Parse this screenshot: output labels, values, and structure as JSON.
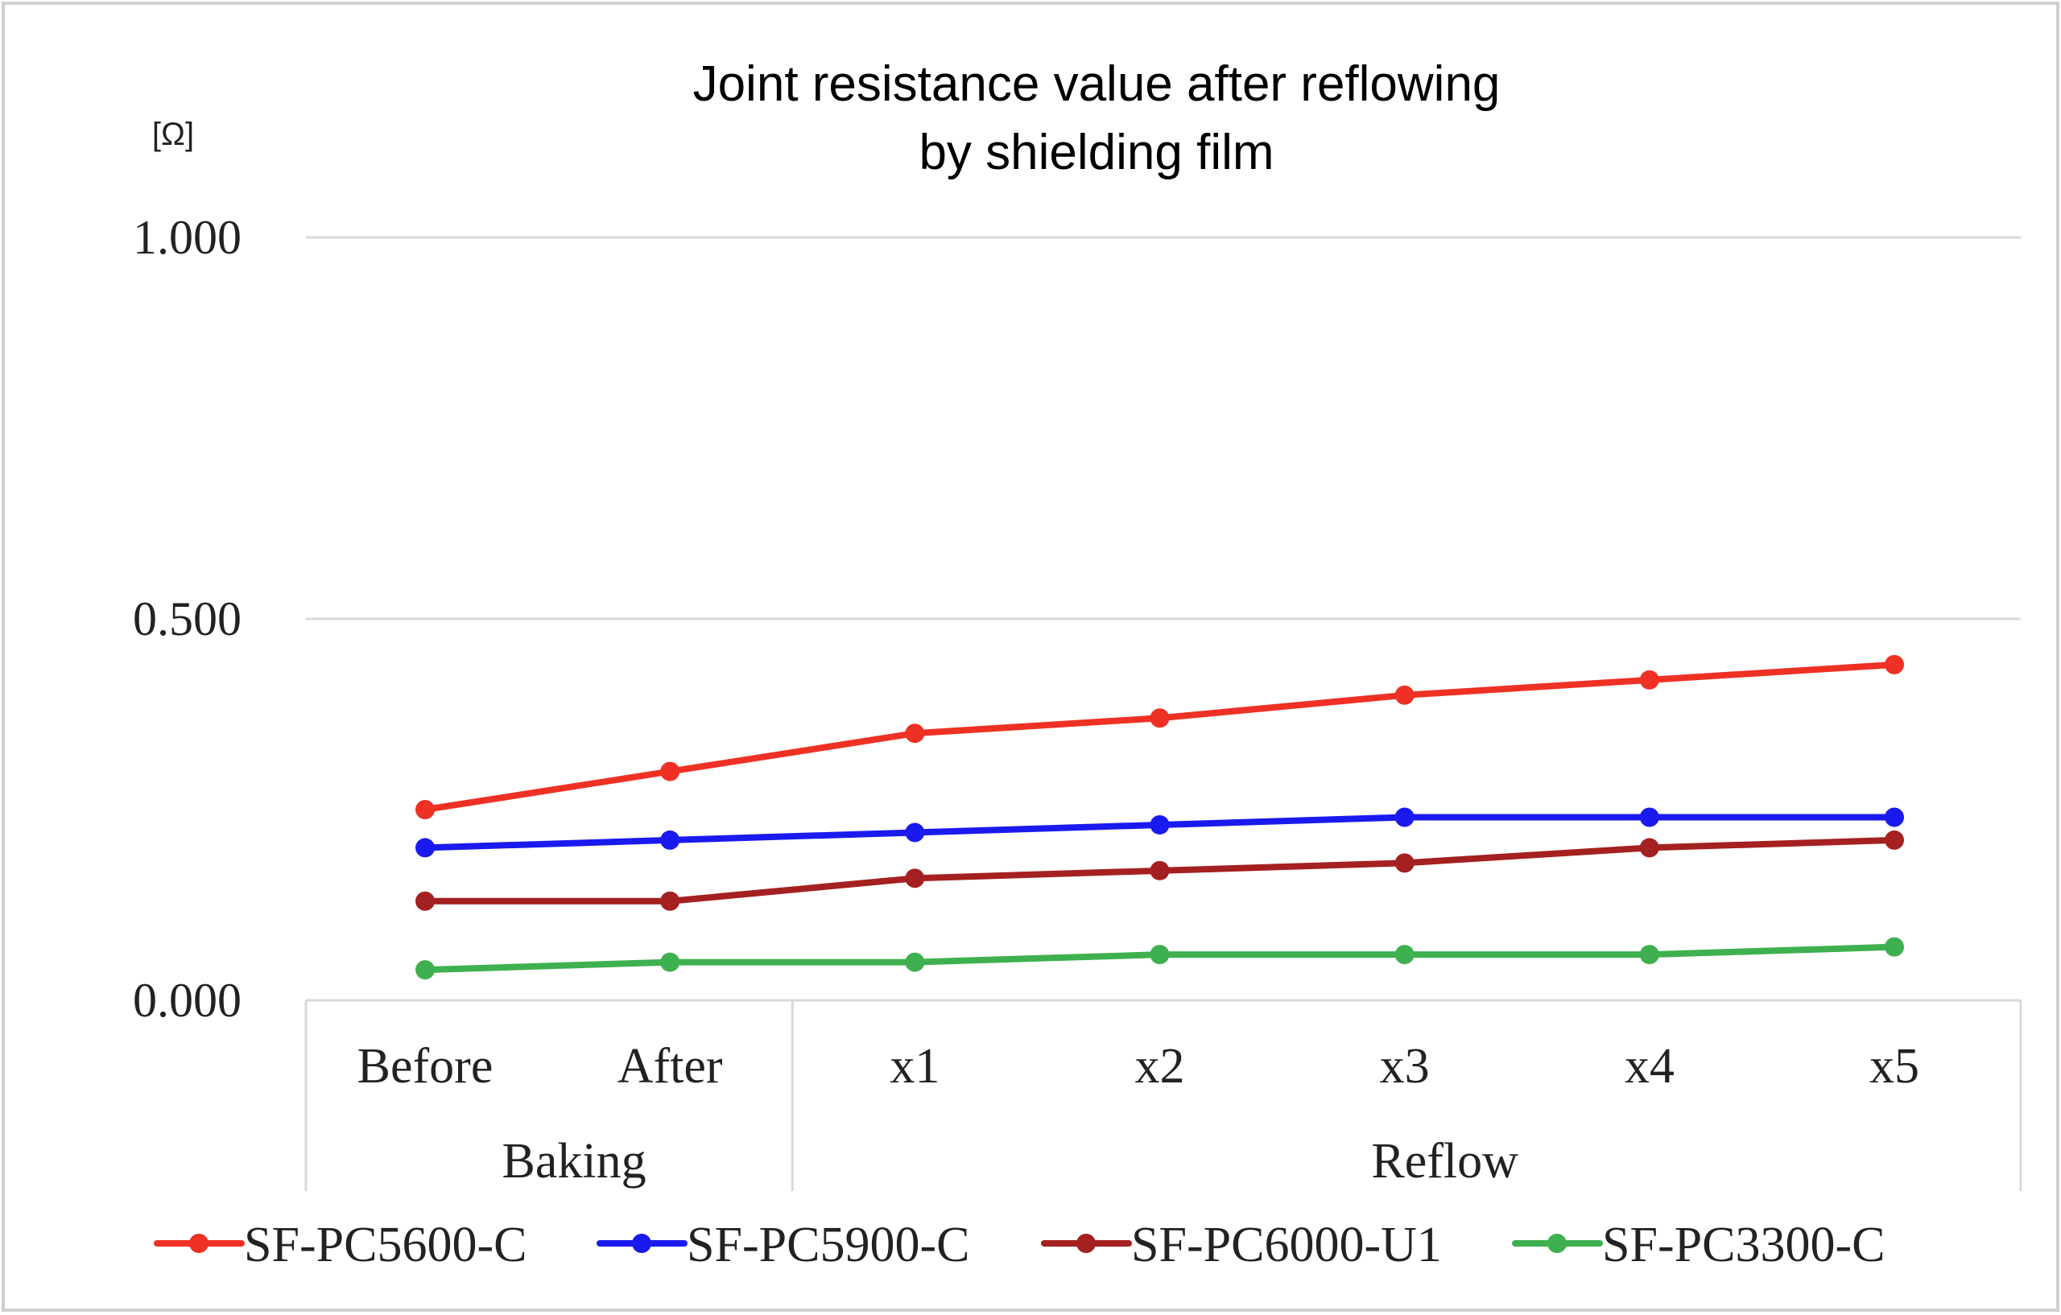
{
  "chart_data": {
    "type": "line",
    "title_lines": [
      "Joint resistance value after reflowing",
      "by shielding film"
    ],
    "ylabel": "[Ω]",
    "xlabel": "",
    "ylim": [
      0,
      1
    ],
    "yticks": [
      "1.000",
      "0.500",
      "0.000"
    ],
    "ytick_values": [
      1.0,
      0.5,
      0.0
    ],
    "grid": true,
    "legend_position": "bottom",
    "categories": [
      "Before",
      "After",
      "x1",
      "x2",
      "x3",
      "x4",
      "x5"
    ],
    "groups": [
      {
        "label": "Baking",
        "categories": [
          "Before",
          "After"
        ]
      },
      {
        "label": "Reflow",
        "categories": [
          "x1",
          "x2",
          "x3",
          "x4",
          "x5"
        ]
      }
    ],
    "series": [
      {
        "name": "SF-PC5600-C",
        "color": "#ee3124",
        "values": [
          0.25,
          0.3,
          0.35,
          0.37,
          0.4,
          0.42,
          0.44
        ]
      },
      {
        "name": "SF-PC5900-C",
        "color": "#1a1aee",
        "values": [
          0.2,
          0.21,
          0.22,
          0.23,
          0.24,
          0.24,
          0.24
        ]
      },
      {
        "name": "SF-PC6000-U1",
        "color": "#a52020",
        "values": [
          0.13,
          0.13,
          0.16,
          0.17,
          0.18,
          0.2,
          0.21
        ]
      },
      {
        "name": "SF-PC3300-C",
        "color": "#3fb04f",
        "values": [
          0.04,
          0.05,
          0.05,
          0.06,
          0.06,
          0.06,
          0.07
        ]
      }
    ]
  }
}
